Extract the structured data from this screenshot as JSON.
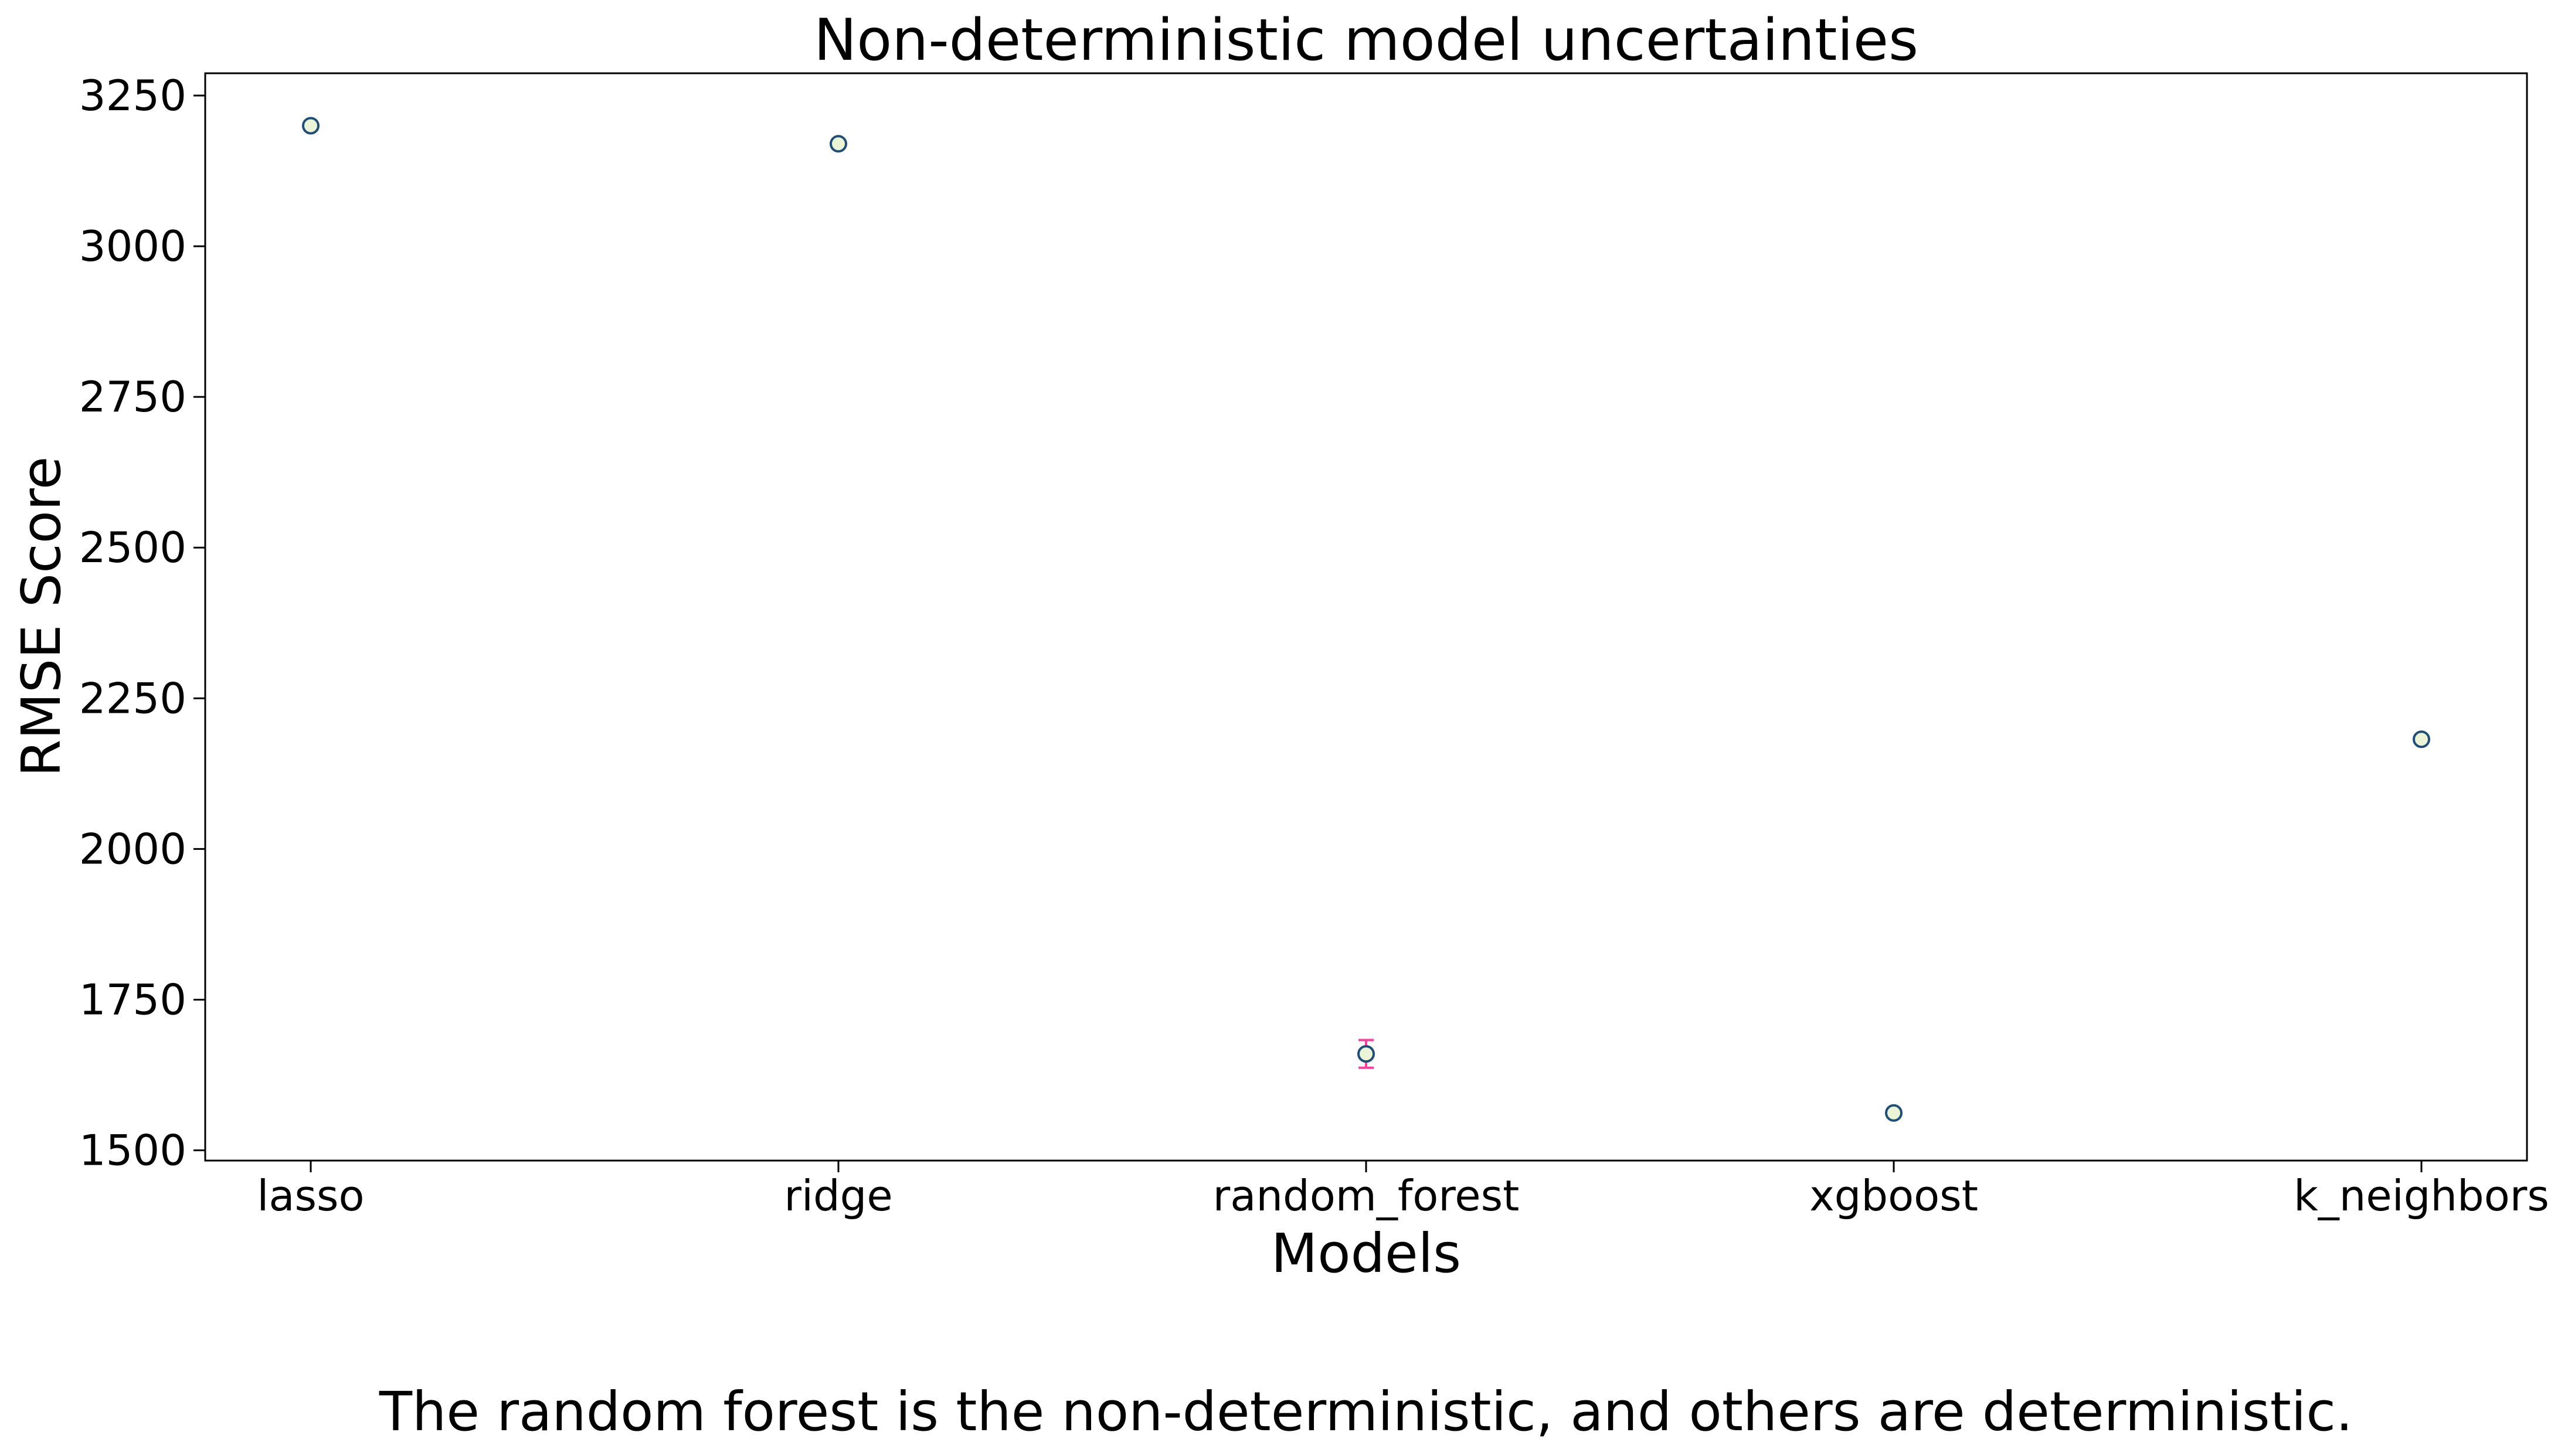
{
  "chart_data": {
    "type": "scatter",
    "title": "Non-deterministic model uncertainties",
    "xlabel": "Models",
    "ylabel": "RMSE Score",
    "categories": [
      "lasso",
      "ridge",
      "random_forest",
      "xgboost",
      "k_neighbors"
    ],
    "values": [
      3200,
      3170,
      1660,
      1562,
      2182
    ],
    "error": [
      0,
      0,
      23,
      0,
      0
    ],
    "ylim": [
      1483,
      3287
    ],
    "yticks": [
      1500,
      1750,
      2000,
      2250,
      2500,
      2750,
      3000,
      3250
    ],
    "grid": false,
    "marker_face_color": "#ecf4d6",
    "marker_edge_color": "#1f4e79",
    "error_bar_color": "#ff3d9b"
  },
  "caption": "The random forest is the non-deterministic, and others are deterministic."
}
